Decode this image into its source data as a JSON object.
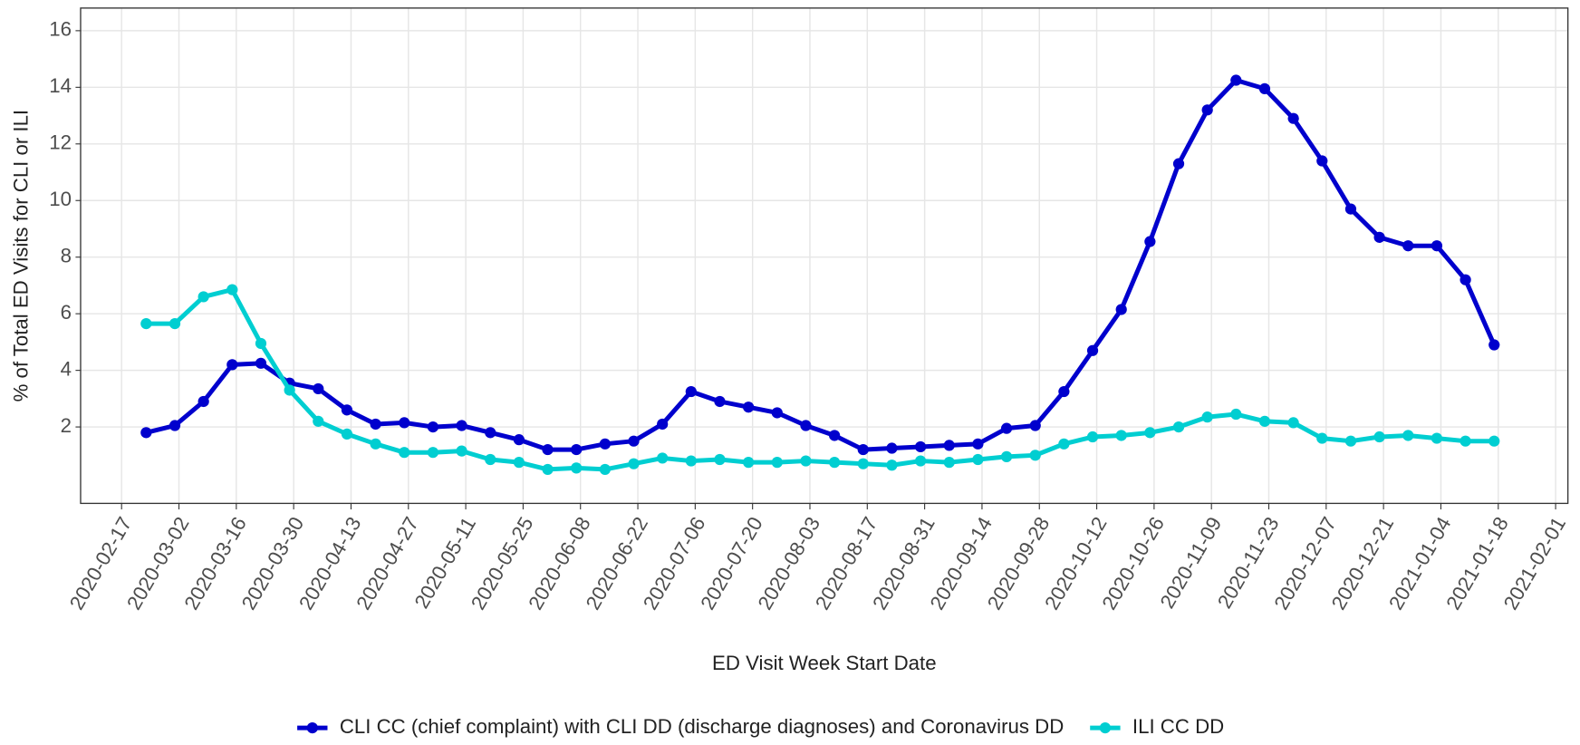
{
  "chart_data": {
    "type": "line",
    "x_label": "ED Visit Week Start Date",
    "y_label": "% of Total ED Visits for CLI or ILI",
    "x": [
      "2020-02-23",
      "2020-03-01",
      "2020-03-08",
      "2020-03-15",
      "2020-03-22",
      "2020-03-29",
      "2020-04-05",
      "2020-04-12",
      "2020-04-19",
      "2020-04-26",
      "2020-05-03",
      "2020-05-10",
      "2020-05-17",
      "2020-05-24",
      "2020-05-31",
      "2020-06-07",
      "2020-06-14",
      "2020-06-21",
      "2020-06-28",
      "2020-07-05",
      "2020-07-12",
      "2020-07-19",
      "2020-07-26",
      "2020-08-02",
      "2020-08-09",
      "2020-08-16",
      "2020-08-23",
      "2020-08-30",
      "2020-09-06",
      "2020-09-13",
      "2020-09-20",
      "2020-09-27",
      "2020-10-04",
      "2020-10-11",
      "2020-10-18",
      "2020-10-25",
      "2020-11-01",
      "2020-11-08",
      "2020-11-15",
      "2020-11-22",
      "2020-11-29",
      "2020-12-06",
      "2020-12-13",
      "2020-12-20",
      "2020-12-27",
      "2021-01-03",
      "2021-01-10",
      "2021-01-17"
    ],
    "series": [
      {
        "name": "CLI CC (chief complaint) with CLI DD (discharge diagnoses) and Coronavirus DD",
        "color": "#0000cd",
        "values": [
          1.8,
          2.05,
          2.9,
          4.2,
          4.25,
          3.55,
          3.35,
          2.6,
          2.1,
          2.15,
          2.0,
          2.05,
          1.8,
          1.55,
          1.2,
          1.2,
          1.4,
          1.5,
          2.1,
          3.25,
          2.9,
          2.7,
          2.5,
          2.05,
          1.7,
          1.2,
          1.25,
          1.3,
          1.35,
          1.4,
          1.95,
          2.05,
          3.25,
          4.7,
          6.15,
          8.55,
          11.3,
          13.2,
          14.25,
          13.95,
          12.9,
          11.4,
          9.7,
          8.7,
          8.4,
          8.4,
          7.2,
          4.9
        ]
      },
      {
        "name": "ILI CC DD",
        "color": "#00ced1",
        "values": [
          5.65,
          5.65,
          6.6,
          6.85,
          4.95,
          3.3,
          2.2,
          1.75,
          1.4,
          1.1,
          1.1,
          1.15,
          0.85,
          0.75,
          0.5,
          0.55,
          0.5,
          0.7,
          0.9,
          0.8,
          0.85,
          0.75,
          0.75,
          0.8,
          0.75,
          0.7,
          0.65,
          0.8,
          0.75,
          0.85,
          0.95,
          1.0,
          1.4,
          1.65,
          1.7,
          1.8,
          2.0,
          2.35,
          2.45,
          2.2,
          2.15,
          1.6,
          1.5,
          1.65,
          1.7,
          1.6,
          1.5,
          1.5
        ]
      }
    ],
    "xlim": [
      "2020-02-07",
      "2021-02-04"
    ],
    "xticks": [
      "2020-02-17",
      "2020-03-02",
      "2020-03-16",
      "2020-03-30",
      "2020-04-13",
      "2020-04-27",
      "2020-05-11",
      "2020-05-25",
      "2020-06-08",
      "2020-06-22",
      "2020-07-06",
      "2020-07-20",
      "2020-08-03",
      "2020-08-17",
      "2020-08-31",
      "2020-09-14",
      "2020-09-28",
      "2020-10-12",
      "2020-10-26",
      "2020-11-09",
      "2020-11-23",
      "2020-12-07",
      "2020-12-21",
      "2021-01-04",
      "2021-01-18",
      "2021-02-01"
    ],
    "ylim": [
      -0.7,
      16.8
    ],
    "yticks": [
      2,
      4,
      6,
      8,
      10,
      12,
      14,
      16
    ],
    "grid": true,
    "legend_position": "bottom"
  }
}
